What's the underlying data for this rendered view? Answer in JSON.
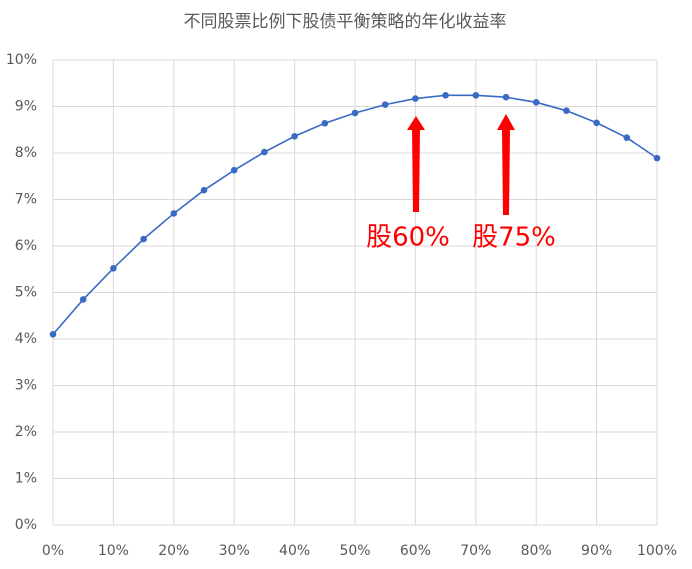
{
  "chart_data": {
    "type": "line",
    "title": "不同股票比例下股债平衡策略的年化收益率",
    "x": [
      0,
      5,
      10,
      15,
      20,
      25,
      30,
      35,
      40,
      45,
      50,
      55,
      60,
      65,
      70,
      75,
      80,
      85,
      90,
      95,
      100
    ],
    "series": [
      {
        "name": "年化收益率",
        "color": "#3a6bc4",
        "values": [
          4.1,
          4.85,
          5.52,
          6.15,
          6.7,
          7.2,
          7.63,
          8.02,
          8.36,
          8.64,
          8.86,
          9.04,
          9.17,
          9.24,
          9.24,
          9.2,
          9.09,
          8.91,
          8.65,
          8.33,
          7.89
        ]
      }
    ],
    "xlim": [
      0,
      100
    ],
    "xticks": [
      {
        "value": 0,
        "label": "0%"
      },
      {
        "value": 10,
        "label": "10%"
      },
      {
        "value": 20,
        "label": "20%"
      },
      {
        "value": 30,
        "label": "30%"
      },
      {
        "value": 40,
        "label": "40%"
      },
      {
        "value": 50,
        "label": "50%"
      },
      {
        "value": 60,
        "label": "60%"
      },
      {
        "value": 70,
        "label": "70%"
      },
      {
        "value": 80,
        "label": "80%"
      },
      {
        "value": 90,
        "label": "90%"
      },
      {
        "value": 100,
        "label": "100%"
      }
    ],
    "ylim": [
      0,
      10
    ],
    "yticks": [
      {
        "value": 0,
        "label": "0%"
      },
      {
        "value": 1,
        "label": "1%"
      },
      {
        "value": 2,
        "label": "2%"
      },
      {
        "value": 3,
        "label": "3%"
      },
      {
        "value": 4,
        "label": "4%"
      },
      {
        "value": 5,
        "label": "5%"
      },
      {
        "value": 6,
        "label": "6%"
      },
      {
        "value": 7,
        "label": "7%"
      },
      {
        "value": 8,
        "label": "8%"
      },
      {
        "value": 9,
        "label": "9%"
      },
      {
        "value": 10,
        "label": "10%"
      }
    ],
    "grid": true,
    "annotations": [
      "股60%",
      "股75%"
    ]
  }
}
